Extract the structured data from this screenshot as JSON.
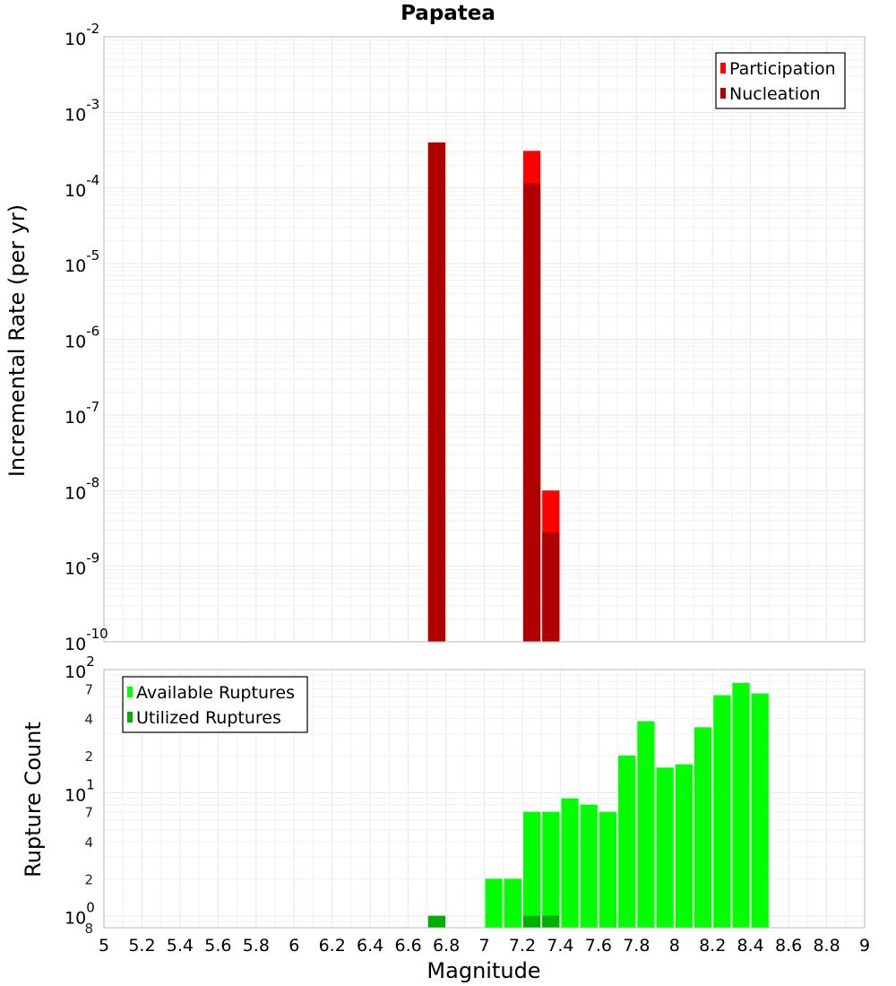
{
  "title": "Papatea",
  "x_axis": {
    "label": "Magnitude",
    "range": [
      5,
      9
    ],
    "ticks": [
      "5",
      "5.2",
      "5.4",
      "5.6",
      "5.8",
      "6",
      "6.2",
      "6.4",
      "6.6",
      "6.8",
      "7",
      "7.2",
      "7.4",
      "7.6",
      "7.8",
      "8",
      "8.2",
      "8.4",
      "8.6",
      "8.8",
      "9"
    ]
  },
  "chart_data": [
    {
      "type": "bar",
      "title": "Papatea",
      "xlabel": "Magnitude",
      "ylabel": "Incremental Rate (per yr)",
      "y_scale": "log",
      "ylim": [
        1e-10,
        0.01
      ],
      "xlim": [
        5,
        9
      ],
      "grid": true,
      "legend_position": "top-right",
      "y_tick_labels": [
        {
          "base": "10",
          "exp": "-2"
        },
        {
          "base": "10",
          "exp": "-3"
        },
        {
          "base": "10",
          "exp": "-4"
        },
        {
          "base": "10",
          "exp": "-5"
        },
        {
          "base": "10",
          "exp": "-6"
        },
        {
          "base": "10",
          "exp": "-7"
        },
        {
          "base": "10",
          "exp": "-8"
        },
        {
          "base": "10",
          "exp": "-9"
        },
        {
          "base": "10",
          "exp": "-10"
        }
      ],
      "bin_width": 0.1,
      "series": [
        {
          "name": "Participation",
          "color": "#ff0000",
          "x": [
            6.75,
            7.25,
            7.35
          ],
          "values": [
            0.0004,
            0.00031,
            1e-08
          ]
        },
        {
          "name": "Nucleation",
          "color": "#b00000",
          "x": [
            6.75,
            7.25,
            7.35
          ],
          "values": [
            0.0004,
            0.000115,
            2.8e-09
          ]
        }
      ]
    },
    {
      "type": "bar",
      "xlabel": "Magnitude",
      "ylabel": "Rupture Count",
      "y_scale": "log",
      "ylim": [
        0.8,
        100
      ],
      "xlim": [
        5,
        9
      ],
      "grid": true,
      "legend_position": "top-left",
      "y_tick_labels": [
        {
          "base": "10",
          "exp": "2"
        },
        {
          "base": "10",
          "exp": "1"
        },
        {
          "base": "10",
          "exp": "0"
        }
      ],
      "y_minor_labels": [
        "7",
        "4",
        "2",
        "7",
        "4",
        "2",
        "8"
      ],
      "bin_width": 0.1,
      "series": [
        {
          "name": "Available Ruptures",
          "color": "#00ff00",
          "x": [
            6.75,
            7.05,
            7.15,
            7.25,
            7.35,
            7.45,
            7.55,
            7.65,
            7.75,
            7.85,
            7.95,
            8.05,
            8.15,
            8.25,
            8.35,
            8.45
          ],
          "values": [
            1,
            2,
            2,
            7,
            7,
            9,
            8,
            7,
            20,
            38,
            16,
            17,
            34,
            62,
            78,
            64
          ]
        },
        {
          "name": "Utilized Ruptures",
          "color": "#00b000",
          "x": [
            6.75,
            7.25,
            7.35
          ],
          "values": [
            1,
            1,
            1
          ]
        }
      ]
    }
  ]
}
